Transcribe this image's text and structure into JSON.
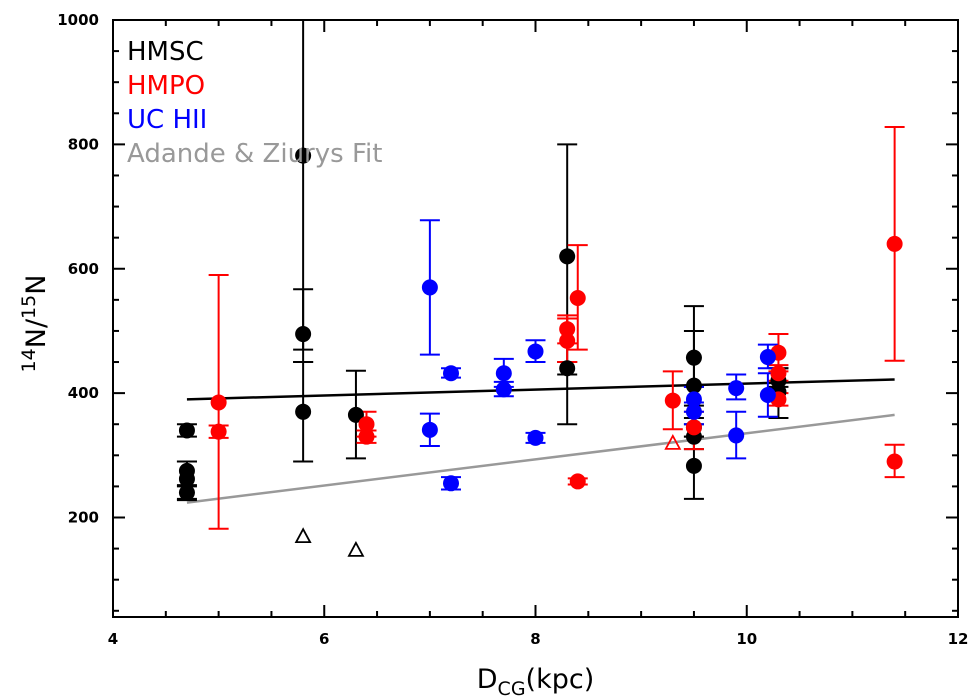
{
  "chart_data": {
    "type": "scatter",
    "title": "",
    "xlabel": {
      "main": "D",
      "sub": "CG",
      "rest": "(kpc)"
    },
    "ylabel": {
      "sup1": "14",
      "main1": "N/",
      "sup2": "15",
      "main2": "N"
    },
    "xlim": [
      4,
      12
    ],
    "ylim": [
      40,
      1000
    ],
    "xticks": [
      4,
      6,
      8,
      10,
      12
    ],
    "yticks": [
      200,
      400,
      600,
      800,
      1000
    ],
    "legend": {
      "placement": "top-left",
      "entries": [
        {
          "label": "HMSC",
          "color": "#000000"
        },
        {
          "label": "HMPO",
          "color": "#ff0000"
        },
        {
          "label": "UC  HII",
          "color": "#0000ff"
        },
        {
          "label": "Adande & Ziurys Fit",
          "color": "#999999"
        }
      ]
    },
    "series": [
      {
        "name": "HMSC",
        "color": "#000000",
        "points": [
          {
            "x": 4.7,
            "y": 340,
            "lo": 330,
            "hi": 350
          },
          {
            "x": 4.7,
            "y": 262,
            "lo": 230,
            "hi": 290
          },
          {
            "x": 4.7,
            "y": 275,
            "lo": 250,
            "hi": 290
          },
          {
            "x": 4.7,
            "y": 240,
            "lo": 228,
            "hi": 252
          },
          {
            "x": 5.8,
            "y": 782,
            "lo": 470,
            "hi": 1000
          },
          {
            "x": 5.8,
            "y": 495,
            "lo": 450,
            "hi": 567
          },
          {
            "x": 5.8,
            "y": 370,
            "lo": 290,
            "hi": 450
          },
          {
            "x": 6.3,
            "y": 365,
            "lo": 295,
            "hi": 436
          },
          {
            "x": 8.3,
            "y": 620,
            "lo": 350,
            "hi": 800
          },
          {
            "x": 8.3,
            "y": 440,
            "lo": 430,
            "hi": 450
          },
          {
            "x": 9.5,
            "y": 457,
            "lo": 410,
            "hi": 500
          },
          {
            "x": 9.5,
            "y": 412,
            "lo": 380,
            "hi": 540
          },
          {
            "x": 9.5,
            "y": 345,
            "lo": 330,
            "hi": 360
          },
          {
            "x": 9.5,
            "y": 330,
            "lo": 310,
            "hi": 350
          },
          {
            "x": 9.5,
            "y": 283,
            "lo": 230,
            "hi": 330
          },
          {
            "x": 10.3,
            "y": 402,
            "lo": 360,
            "hi": 440
          },
          {
            "x": 10.3,
            "y": 420,
            "lo": 410,
            "hi": 440
          }
        ]
      },
      {
        "name": "HMPO",
        "color": "#ff0000",
        "points": [
          {
            "x": 5.0,
            "y": 385,
            "lo": 182,
            "hi": 590
          },
          {
            "x": 5.0,
            "y": 338,
            "lo": 328,
            "hi": 348
          },
          {
            "x": 6.4,
            "y": 350,
            "lo": 330,
            "hi": 370
          },
          {
            "x": 6.4,
            "y": 330,
            "lo": 320,
            "hi": 340
          },
          {
            "x": 8.3,
            "y": 503,
            "lo": 480,
            "hi": 525
          },
          {
            "x": 8.3,
            "y": 484,
            "lo": 450,
            "hi": 520
          },
          {
            "x": 8.4,
            "y": 553,
            "lo": 470,
            "hi": 638
          },
          {
            "x": 8.4,
            "y": 258,
            "lo": 253,
            "hi": 263
          },
          {
            "x": 9.3,
            "y": 388,
            "lo": 342,
            "hi": 435
          },
          {
            "x": 9.5,
            "y": 345,
            "lo": 310,
            "hi": 370
          },
          {
            "x": 10.3,
            "y": 465,
            "lo": 435,
            "hi": 495
          },
          {
            "x": 10.3,
            "y": 432,
            "lo": 420,
            "hi": 445
          },
          {
            "x": 10.3,
            "y": 390,
            "lo": 380,
            "hi": 400
          },
          {
            "x": 11.4,
            "y": 640,
            "lo": 452,
            "hi": 828
          },
          {
            "x": 11.4,
            "y": 290,
            "lo": 265,
            "hi": 317
          }
        ]
      },
      {
        "name": "UC  HII",
        "color": "#0000ff",
        "points": [
          {
            "x": 7.0,
            "y": 570,
            "lo": 462,
            "hi": 678
          },
          {
            "x": 7.0,
            "y": 341,
            "lo": 315,
            "hi": 367
          },
          {
            "x": 7.2,
            "y": 432,
            "lo": 425,
            "hi": 440
          },
          {
            "x": 7.2,
            "y": 255,
            "lo": 245,
            "hi": 265
          },
          {
            "x": 7.7,
            "y": 432,
            "lo": 410,
            "hi": 455
          },
          {
            "x": 7.7,
            "y": 406,
            "lo": 395,
            "hi": 418
          },
          {
            "x": 8.0,
            "y": 467,
            "lo": 450,
            "hi": 485
          },
          {
            "x": 8.0,
            "y": 328,
            "lo": 320,
            "hi": 336
          },
          {
            "x": 9.5,
            "y": 390,
            "lo": 370,
            "hi": 410
          },
          {
            "x": 9.5,
            "y": 370,
            "lo": 350,
            "hi": 385
          },
          {
            "x": 9.9,
            "y": 408,
            "lo": 390,
            "hi": 430
          },
          {
            "x": 9.9,
            "y": 332,
            "lo": 295,
            "hi": 370
          },
          {
            "x": 10.2,
            "y": 458,
            "lo": 440,
            "hi": 478
          },
          {
            "x": 10.2,
            "y": 397,
            "lo": 362,
            "hi": 432
          }
        ]
      }
    ],
    "open_triangles": [
      {
        "x": 5.8,
        "y": 170,
        "color": "#000000"
      },
      {
        "x": 6.3,
        "y": 148,
        "color": "#000000"
      },
      {
        "x": 9.3,
        "y": 320,
        "color": "#ff0000"
      }
    ],
    "fit_lines": [
      {
        "name": "HMSC fit",
        "color": "#000000",
        "x": [
          4.7,
          11.4
        ],
        "y": [
          390,
          422
        ]
      },
      {
        "name": "Adande & Ziurys Fit",
        "color": "#999999",
        "x": [
          4.7,
          11.4
        ],
        "y": [
          224,
          365
        ]
      }
    ]
  }
}
